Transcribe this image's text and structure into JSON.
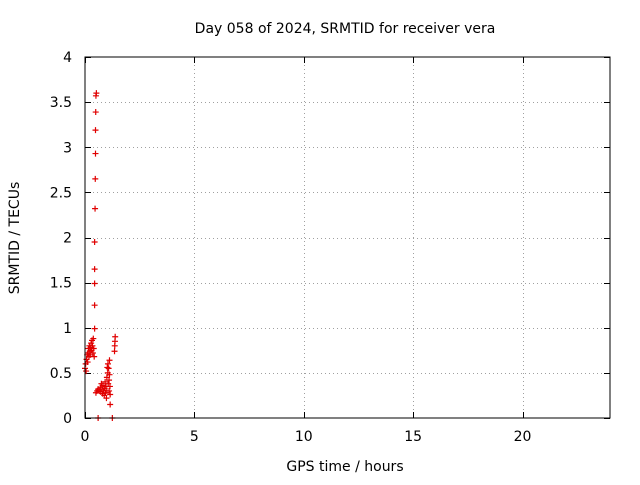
{
  "chart_data": {
    "type": "scatter",
    "title": "Day 058 of 2024, SRMTID for receiver vera",
    "xlabel": "GPS time / hours",
    "ylabel": "SRMTID / TECUs",
    "xlim": [
      0,
      24
    ],
    "ylim": [
      0,
      4
    ],
    "x_ticks": [
      0,
      5,
      10,
      15,
      20
    ],
    "x_tick_labels": [
      "0",
      "5",
      "10",
      "15",
      "20"
    ],
    "y_ticks": [
      0,
      0.5,
      1,
      1.5,
      2,
      2.5,
      3,
      3.5,
      4
    ],
    "y_tick_labels": [
      "0",
      "0.5",
      "1",
      "1.5",
      "2",
      "2.5",
      "3",
      "3.5",
      "4"
    ],
    "grid": true,
    "marker": "+",
    "series_color": "#e00000",
    "series": [
      {
        "name": "vera",
        "points": [
          [
            0.0,
            0.55
          ],
          [
            0.03,
            0.6
          ],
          [
            0.05,
            0.52
          ],
          [
            0.07,
            0.65
          ],
          [
            0.1,
            0.7
          ],
          [
            0.12,
            0.62
          ],
          [
            0.14,
            0.72
          ],
          [
            0.16,
            0.77
          ],
          [
            0.18,
            0.68
          ],
          [
            0.2,
            0.8
          ],
          [
            0.22,
            0.74
          ],
          [
            0.24,
            0.7
          ],
          [
            0.26,
            0.78
          ],
          [
            0.28,
            0.83
          ],
          [
            0.3,
            0.75
          ],
          [
            0.32,
            0.86
          ],
          [
            0.34,
            0.8
          ],
          [
            0.36,
            0.72
          ],
          [
            0.38,
            0.88
          ],
          [
            0.4,
            0.77
          ],
          [
            0.42,
            0.68
          ],
          [
            0.44,
            0.99
          ],
          [
            0.44,
            1.25
          ],
          [
            0.44,
            1.49
          ],
          [
            0.44,
            1.65
          ],
          [
            0.44,
            1.95
          ],
          [
            0.46,
            2.32
          ],
          [
            0.47,
            2.65
          ],
          [
            0.48,
            2.93
          ],
          [
            0.48,
            3.19
          ],
          [
            0.49,
            3.39
          ],
          [
            0.5,
            3.57
          ],
          [
            0.52,
            3.6
          ],
          [
            0.5,
            0.28
          ],
          [
            0.55,
            0.3
          ],
          [
            0.6,
            0.32
          ],
          [
            0.65,
            0.3
          ],
          [
            0.7,
            0.34
          ],
          [
            0.72,
            0.29
          ],
          [
            0.75,
            0.38
          ],
          [
            0.78,
            0.32
          ],
          [
            0.8,
            0.27
          ],
          [
            0.82,
            0.36
          ],
          [
            0.85,
            0.3
          ],
          [
            0.88,
            0.25
          ],
          [
            0.9,
            0.33
          ],
          [
            0.92,
            0.4
          ],
          [
            0.94,
            0.28
          ],
          [
            0.96,
            0.35
          ],
          [
            0.98,
            0.22
          ],
          [
            1.0,
            0.3
          ],
          [
            1.0,
            0.45
          ],
          [
            1.02,
            0.56
          ],
          [
            1.04,
            0.5
          ],
          [
            1.05,
            0.6
          ],
          [
            1.06,
            0.38
          ],
          [
            1.08,
            0.55
          ],
          [
            1.1,
            0.42
          ],
          [
            1.1,
            0.3
          ],
          [
            1.12,
            0.48
          ],
          [
            1.12,
            0.64
          ],
          [
            1.14,
            0.35
          ],
          [
            1.15,
            0.15
          ],
          [
            1.15,
            0.26
          ],
          [
            0.6,
            0.0
          ],
          [
            1.25,
            0.0
          ],
          [
            1.35,
            0.74
          ],
          [
            1.36,
            0.8
          ],
          [
            1.37,
            0.85
          ],
          [
            1.38,
            0.9
          ]
        ]
      }
    ]
  }
}
